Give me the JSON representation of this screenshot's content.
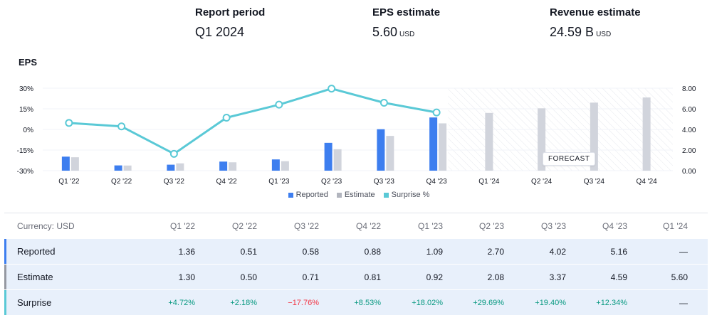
{
  "summary": {
    "report_period_label": "Report period",
    "report_period_value": "Q1 2024",
    "eps_label": "EPS estimate",
    "eps_value": "5.60",
    "eps_unit": "USD",
    "revenue_label": "Revenue estimate",
    "revenue_value": "24.59 B",
    "revenue_unit": "USD"
  },
  "forecast_label": "FORECAST",
  "colors": {
    "reported": "#3d7eef",
    "estimate": "#d1d4dc",
    "surprise": "#5ac9d6",
    "positive": "#089981",
    "negative": "#f23645"
  },
  "chart_data": {
    "type": "bar",
    "title": "EPS",
    "categories": [
      "Q1 '22",
      "Q2 '22",
      "Q3 '22",
      "Q4 '22",
      "Q1 '23",
      "Q2 '23",
      "Q3 '23",
      "Q4 '23",
      "Q1 '24",
      "Q2 '24",
      "Q3 '24",
      "Q4 '24"
    ],
    "series": [
      {
        "name": "Reported",
        "axis": "right",
        "values": [
          1.36,
          0.51,
          0.58,
          0.88,
          1.09,
          2.7,
          4.02,
          5.16,
          null,
          null,
          null,
          null
        ]
      },
      {
        "name": "Estimate",
        "axis": "right",
        "values": [
          1.3,
          0.5,
          0.71,
          0.81,
          0.92,
          2.08,
          3.37,
          4.59,
          5.6,
          6.05,
          6.6,
          7.1
        ]
      },
      {
        "name": "Surprise %",
        "axis": "left",
        "type": "line",
        "values": [
          4.72,
          2.18,
          -17.76,
          8.53,
          18.02,
          29.69,
          19.4,
          12.34,
          null,
          null,
          null,
          null
        ]
      }
    ],
    "left_axis": {
      "ticks": [
        "30%",
        "15%",
        "0%",
        "-15%",
        "-30%"
      ],
      "range": [
        -30,
        30
      ]
    },
    "right_axis": {
      "ticks": [
        "8.00",
        "6.00",
        "4.00",
        "2.00",
        "0.00"
      ],
      "range": [
        0,
        8
      ]
    },
    "forecast_from_index": 8,
    "legend": [
      "Reported",
      "Estimate",
      "Surprise %"
    ]
  },
  "table": {
    "currency_label": "Currency: USD",
    "columns": [
      "Q1 '22",
      "Q2 '22",
      "Q3 '22",
      "Q4 '22",
      "Q1 '23",
      "Q2 '23",
      "Q3 '23",
      "Q4 '23",
      "Q1 '24"
    ],
    "rows": [
      {
        "label": "Reported",
        "values": [
          "1.36",
          "0.51",
          "0.58",
          "0.88",
          "1.09",
          "2.70",
          "4.02",
          "5.16",
          "—"
        ]
      },
      {
        "label": "Estimate",
        "values": [
          "1.30",
          "0.50",
          "0.71",
          "0.81",
          "0.92",
          "2.08",
          "3.37",
          "4.59",
          "5.60"
        ]
      },
      {
        "label": "Surprise",
        "values": [
          "+4.72%",
          "+2.18%",
          "−17.76%",
          "+8.53%",
          "+18.02%",
          "+29.69%",
          "+19.40%",
          "+12.34%",
          "—"
        ]
      }
    ]
  }
}
